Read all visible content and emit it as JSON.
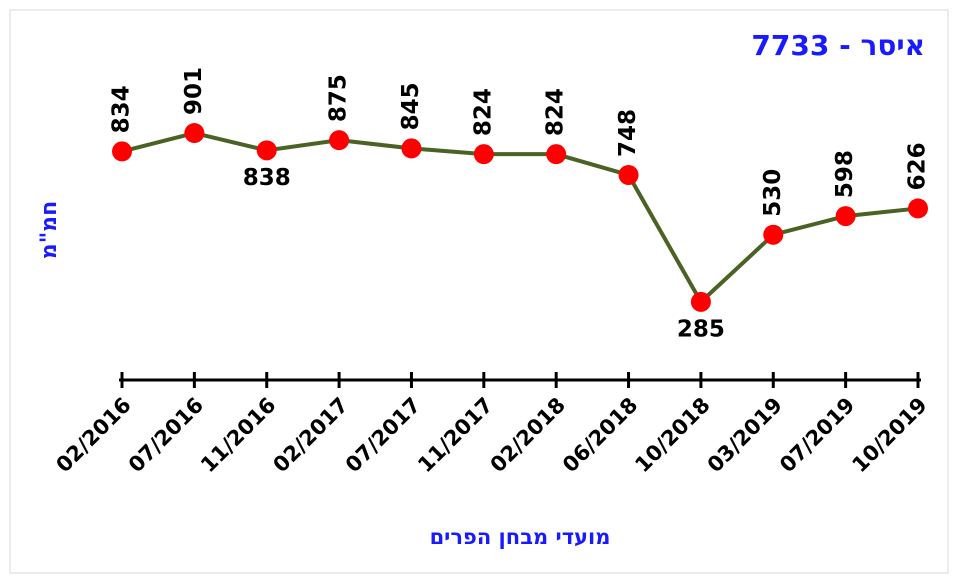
{
  "chart_data": {
    "type": "line",
    "title": "איסר - 7733",
    "y_label": "חמ\"מ",
    "x_label": "מועדי מבחן הפרים",
    "categories": [
      "02/2016",
      "07/2016",
      "11/2016",
      "02/2017",
      "07/2017",
      "11/2017",
      "02/2018",
      "06/2018",
      "10/2018",
      "03/2019",
      "07/2019",
      "10/2019"
    ],
    "series": [
      {
        "name": "איסר - 7733",
        "color": "#4a6324",
        "marker_color": "#ff0000",
        "values": [
          834,
          901,
          838,
          875,
          845,
          824,
          824,
          748,
          285,
          530,
          598,
          626
        ]
      }
    ],
    "ylim": [
      0,
      1350
    ]
  }
}
